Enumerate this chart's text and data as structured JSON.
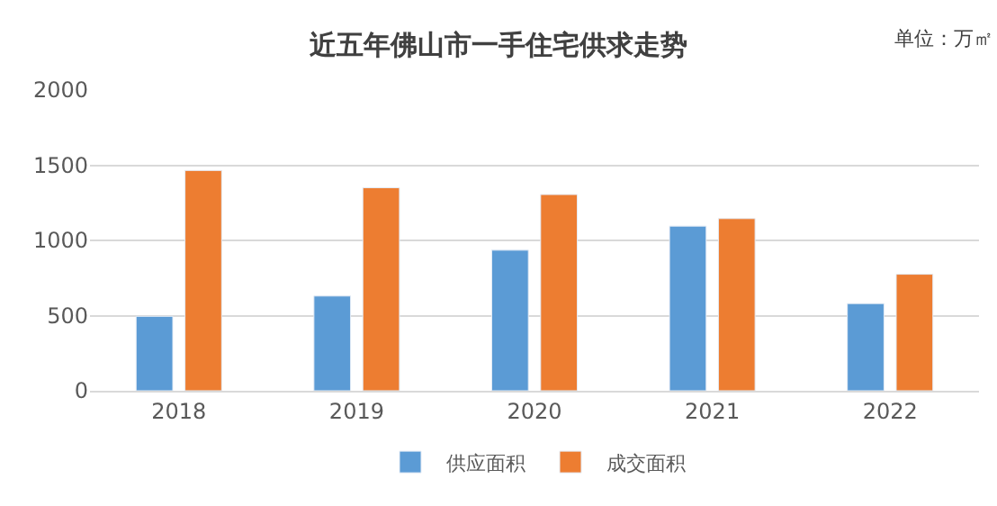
{
  "chart_data": {
    "type": "bar",
    "title": "近五年佛山市一手住宅供求走势",
    "annotations": [
      "单位：万㎡"
    ],
    "categories": [
      "2018",
      "2019",
      "2020",
      "2021",
      "2022"
    ],
    "series": [
      {
        "name": "供应面积",
        "color": "#5b9bd5",
        "values": [
          495,
          630,
          935,
          1095,
          580
        ]
      },
      {
        "name": "成交面积",
        "color": "#ed7d31",
        "values": [
          1465,
          1350,
          1305,
          1145,
          775
        ]
      }
    ],
    "ylim": [
      0,
      2000
    ],
    "yticks": [
      0,
      500,
      1000,
      1500,
      2000
    ],
    "grid": "y",
    "legend": "bottom"
  }
}
